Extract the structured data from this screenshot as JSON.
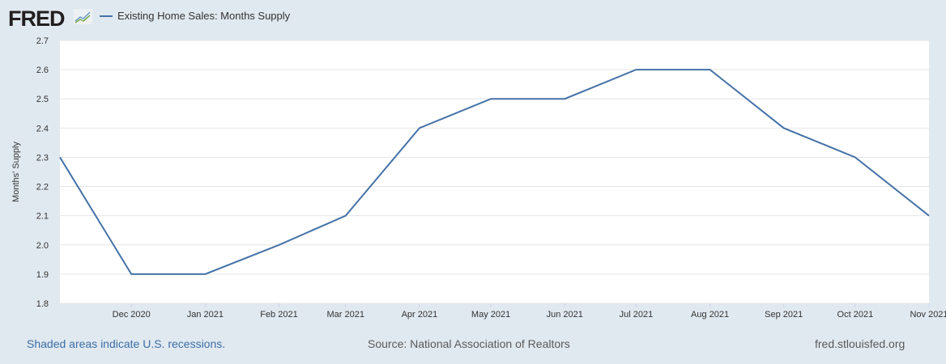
{
  "header": {
    "logo": "FRED",
    "legend": "Existing Home Sales: Months Supply"
  },
  "chart_data": {
    "type": "line",
    "title": "Existing Home Sales: Months Supply",
    "ylabel": "Months' Supply",
    "xlabel": "",
    "ylim": [
      1.8,
      2.7
    ],
    "yticks": [
      "1.8",
      "1.9",
      "2.0",
      "2.1",
      "2.2",
      "2.3",
      "2.4",
      "2.5",
      "2.6",
      "2.7"
    ],
    "xticks": [
      "Dec 2020",
      "Jan 2021",
      "Feb 2021",
      "Mar 2021",
      "Apr 2021",
      "May 2021",
      "Jun 2021",
      "Jul 2021",
      "Aug 2021",
      "Sep 2021",
      "Oct 2021",
      "Nov 2021"
    ],
    "grid": true,
    "series": [
      {
        "name": "Existing Home Sales: Months Supply",
        "color": "#4572a7",
        "x": [
          "2020-11-01",
          "2020-12-01",
          "2021-01-01",
          "2021-02-01",
          "2021-03-01",
          "2021-04-01",
          "2021-05-01",
          "2021-06-01",
          "2021-07-01",
          "2021-08-01",
          "2021-09-01",
          "2021-10-01",
          "2021-11-01"
        ],
        "values": [
          2.3,
          1.9,
          1.9,
          2.0,
          2.1,
          2.4,
          2.5,
          2.5,
          2.6,
          2.6,
          2.4,
          2.3,
          2.1
        ]
      }
    ]
  },
  "footer": {
    "recessions": "Shaded areas indicate U.S. recessions.",
    "source": "Source: National Association of Realtors",
    "site": "fred.stlouisfed.org"
  }
}
